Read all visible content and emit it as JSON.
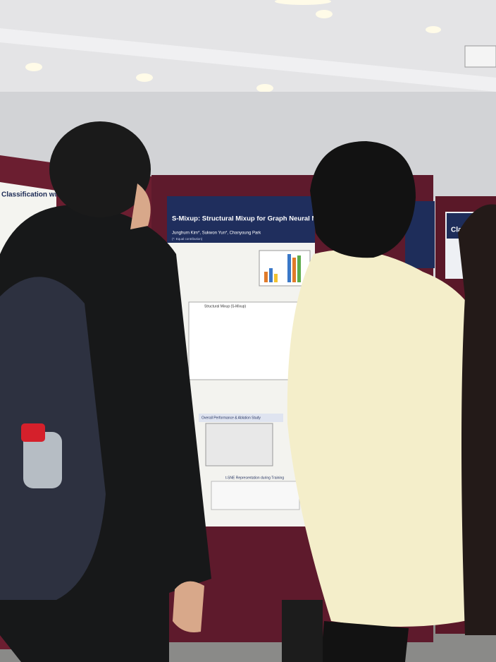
{
  "poster": {
    "title": "S-Mixup: Structural Mixup for Graph Neural Ne",
    "authors": "Junghurn Kim*, Sukwon Yun*, Chanyoung Park",
    "note": "(*: Equal contribution)",
    "sections": [
      "Structural Mixup (S-Mixup)",
      "Overall Performance & Ablation Study",
      "t-SNE Representation during Training"
    ]
  },
  "left_poster": {
    "title": "Classification with S"
  },
  "right_poster": {
    "title": "Class I"
  }
}
